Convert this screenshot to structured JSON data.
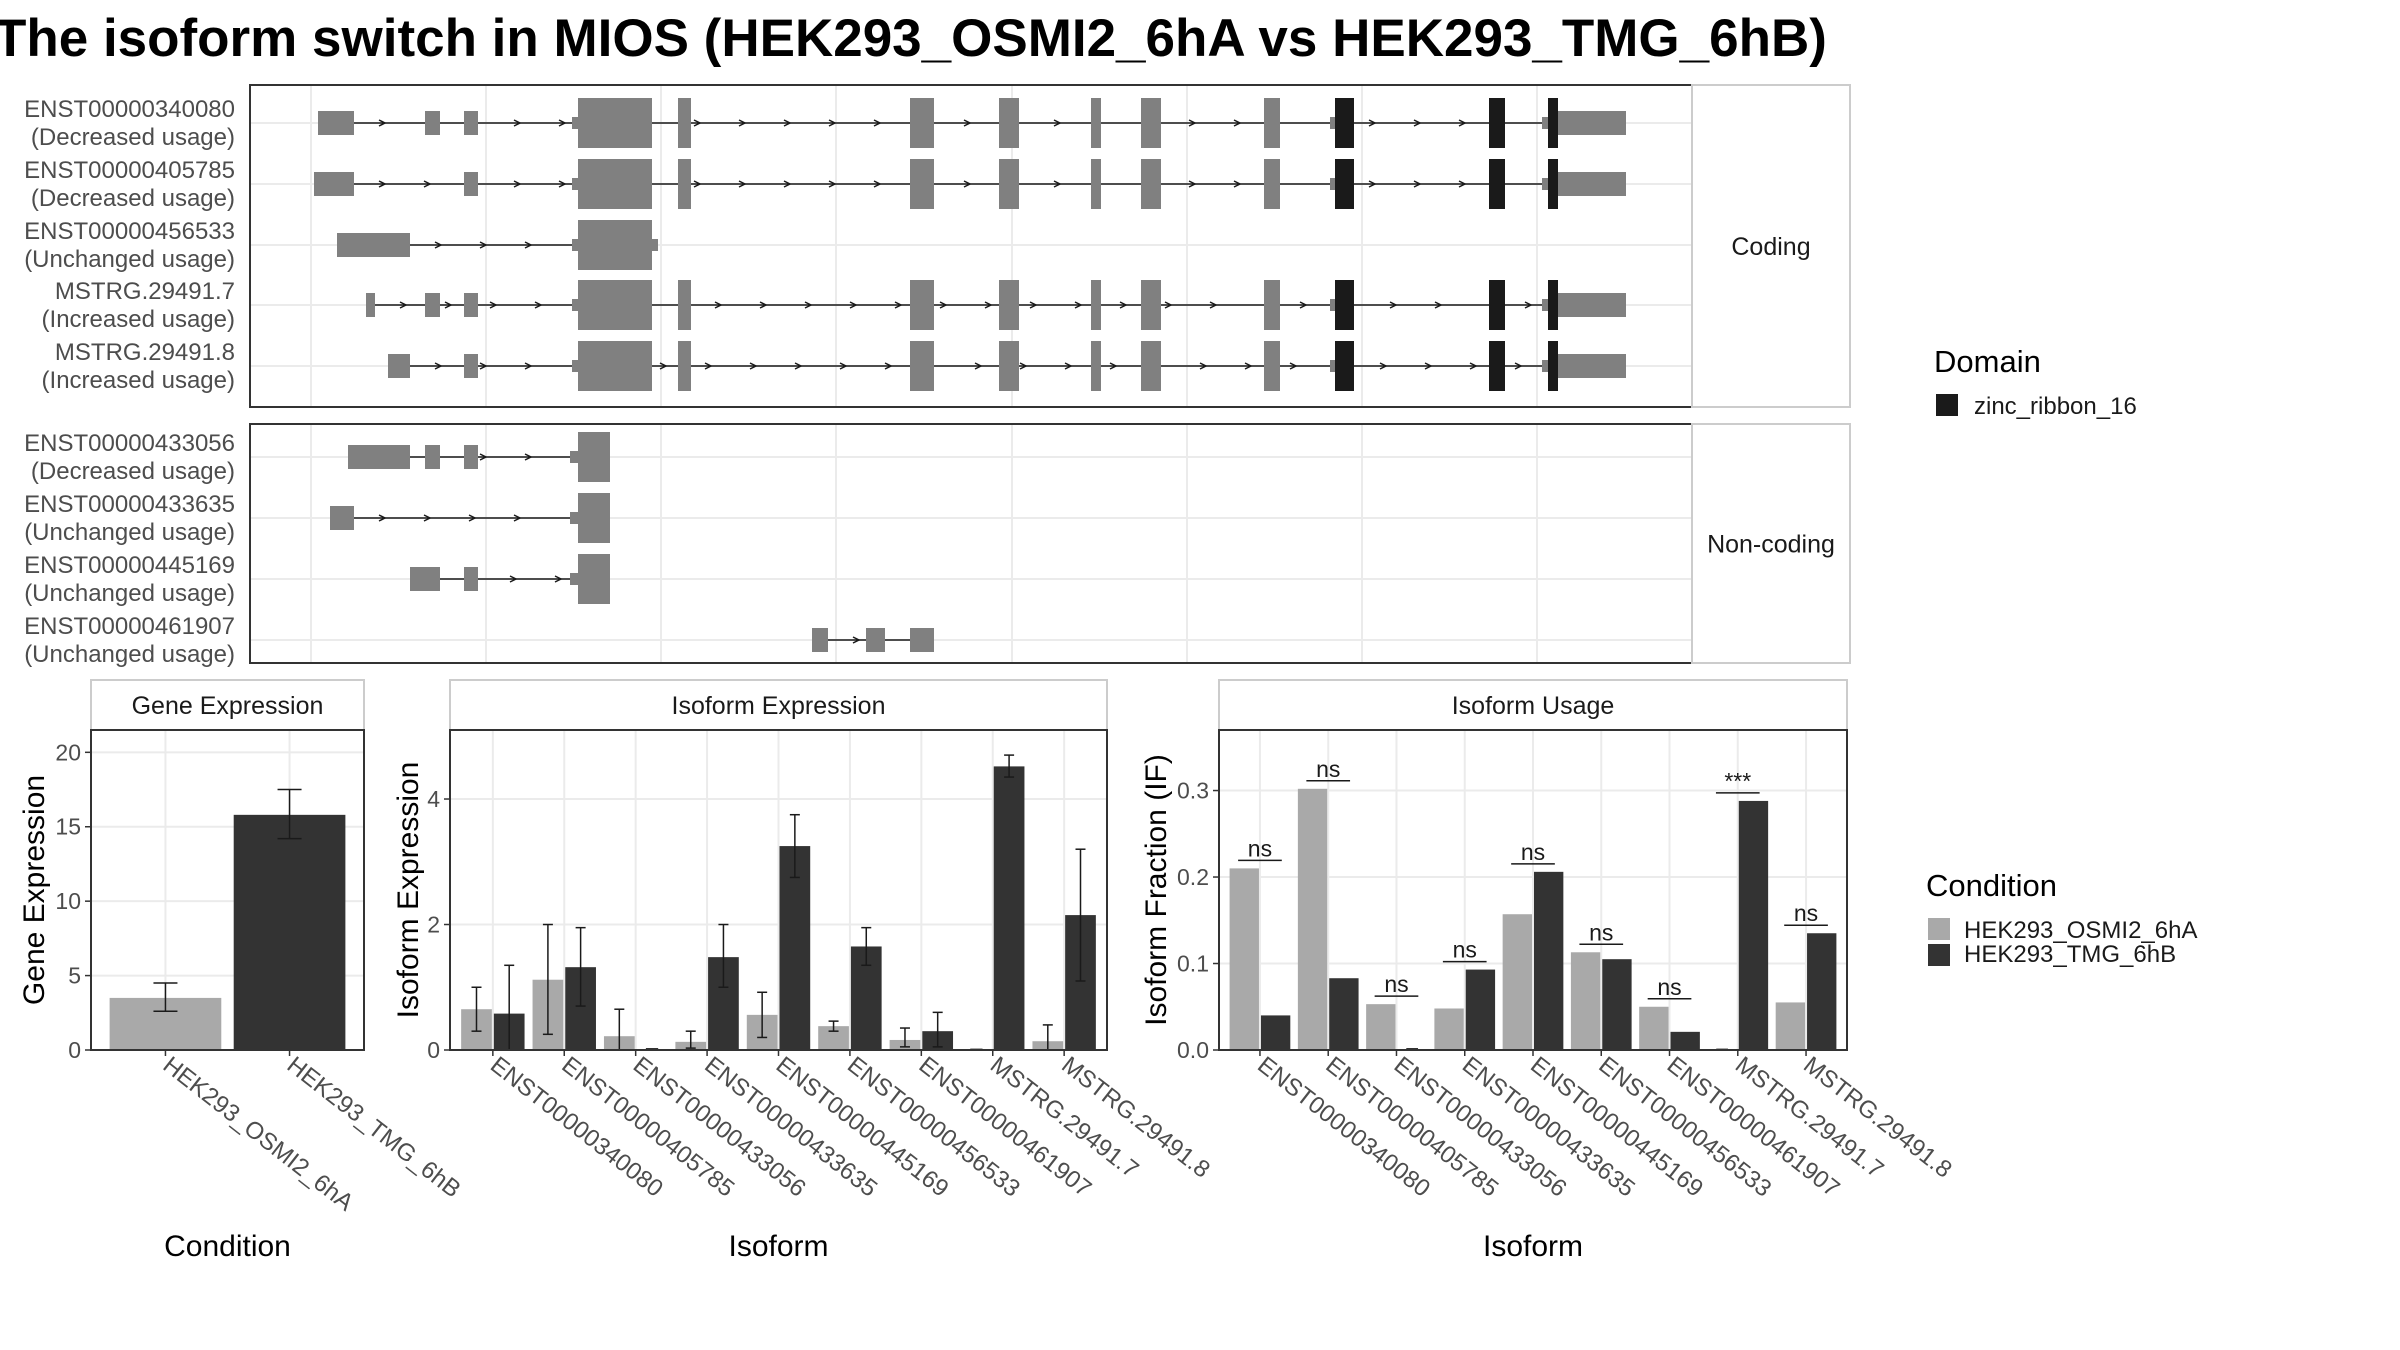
{
  "title": "The isoform switch in MIOS (HEK293_OSMI2_6hA vs HEK293_TMG_6hB)",
  "colors": {
    "exon": "#808080",
    "domain": "#1a1a1a",
    "cond_a": "#a9a9a9",
    "cond_b": "#333333",
    "grid": "#ebebeb",
    "panel_border": "#333333",
    "strip_border": "#cccccc"
  },
  "transcript_panels": [
    {
      "label": "Coding",
      "transcripts": [
        {
          "id": "ENST00000340080",
          "usage": "(Decreased usage)"
        },
        {
          "id": "ENST00000405785",
          "usage": "(Decreased usage)"
        },
        {
          "id": "ENST00000456533",
          "usage": "(Unchanged usage)"
        },
        {
          "id": "MSTRG.29491.7",
          "usage": "(Increased usage)"
        },
        {
          "id": "MSTRG.29491.8",
          "usage": "(Increased usage)"
        }
      ]
    },
    {
      "label": "Non-coding",
      "transcripts": [
        {
          "id": "ENST00000433056",
          "usage": "(Decreased usage)"
        },
        {
          "id": "ENST00000433635",
          "usage": "(Unchanged usage)"
        },
        {
          "id": "ENST00000445169",
          "usage": "(Unchanged usage)"
        },
        {
          "id": "ENST00000461907",
          "usage": "(Unchanged usage)"
        }
      ]
    }
  ],
  "domain_legend": {
    "title": "Domain",
    "items": [
      "zinc_ribbon_16"
    ]
  },
  "condition_legend": {
    "title": "Condition",
    "items": [
      "HEK293_OSMI2_6hA",
      "HEK293_TMG_6hB"
    ]
  },
  "chart_data": [
    {
      "type": "bar",
      "title": "Gene Expression",
      "xlabel": "Condition",
      "ylabel": "Gene Expression",
      "ylim": [
        0,
        21.5
      ],
      "yticks": [
        0,
        5,
        10,
        15,
        20
      ],
      "categories": [
        "HEK293_OSMI2_6hA",
        "HEK293_TMG_6hB"
      ],
      "values": [
        3.5,
        15.8
      ],
      "errors": [
        [
          2.6,
          4.5
        ],
        [
          14.2,
          17.5
        ]
      ]
    },
    {
      "type": "bar",
      "title": "Isoform Expression",
      "xlabel": "Isoform",
      "ylabel": "Isoform Expression",
      "ylim": [
        0,
        5.1
      ],
      "yticks": [
        0,
        2,
        4
      ],
      "categories": [
        "ENST00000340080",
        "ENST00000405785",
        "ENST00000433056",
        "ENST00000433635",
        "ENST00000445169",
        "ENST00000456533",
        "ENST00000461907",
        "MSTRG.29491.7",
        "MSTRG.29491.8"
      ],
      "series": [
        {
          "name": "HEK293_OSMI2_6hA",
          "values": [
            0.65,
            1.12,
            0.22,
            0.13,
            0.56,
            0.38,
            0.16,
            0.0,
            0.14
          ],
          "errors": [
            [
              0.3,
              1.0
            ],
            [
              0.25,
              2.0
            ],
            [
              0.0,
              0.65
            ],
            [
              0.03,
              0.3
            ],
            [
              0.2,
              0.92
            ],
            [
              0.3,
              0.46
            ],
            [
              0.05,
              0.35
            ],
            null,
            [
              0.0,
              0.4
            ]
          ]
        },
        {
          "name": "HEK293_TMG_6hB",
          "values": [
            0.58,
            1.32,
            0.0,
            1.48,
            3.25,
            1.65,
            0.3,
            4.52,
            2.15
          ],
          "errors": [
            [
              0.0,
              1.35
            ],
            [
              0.7,
              1.95
            ],
            null,
            [
              1.0,
              2.0
            ],
            [
              2.75,
              3.75
            ],
            [
              1.35,
              1.95
            ],
            [
              0.05,
              0.6
            ],
            [
              4.35,
              4.7
            ],
            [
              1.1,
              3.2
            ]
          ]
        }
      ]
    },
    {
      "type": "bar",
      "title": "Isoform Usage",
      "xlabel": "Isoform",
      "ylabel": "Isoform Fraction (IF)",
      "ylim": [
        0,
        0.37
      ],
      "yticks": [
        0.0,
        0.1,
        0.2,
        0.3
      ],
      "ytick_labels": [
        "0.0",
        "0.1",
        "0.2",
        "0.3"
      ],
      "categories": [
        "ENST00000340080",
        "ENST00000405785",
        "ENST00000433056",
        "ENST00000433635",
        "ENST00000445169",
        "ENST00000456533",
        "ENST00000461907",
        "MSTRG.29491.7",
        "MSTRG.29491.8"
      ],
      "series": [
        {
          "name": "HEK293_OSMI2_6hA",
          "values": [
            0.21,
            0.302,
            0.053,
            0.048,
            0.157,
            0.113,
            0.05,
            0.0,
            0.055
          ]
        },
        {
          "name": "HEK293_TMG_6hB",
          "values": [
            0.04,
            0.083,
            0.0,
            0.093,
            0.206,
            0.105,
            0.021,
            0.288,
            0.135
          ]
        }
      ],
      "significance": [
        "ns",
        "ns",
        "ns",
        "ns",
        "ns",
        "ns",
        "ns",
        "***",
        "ns"
      ]
    }
  ]
}
